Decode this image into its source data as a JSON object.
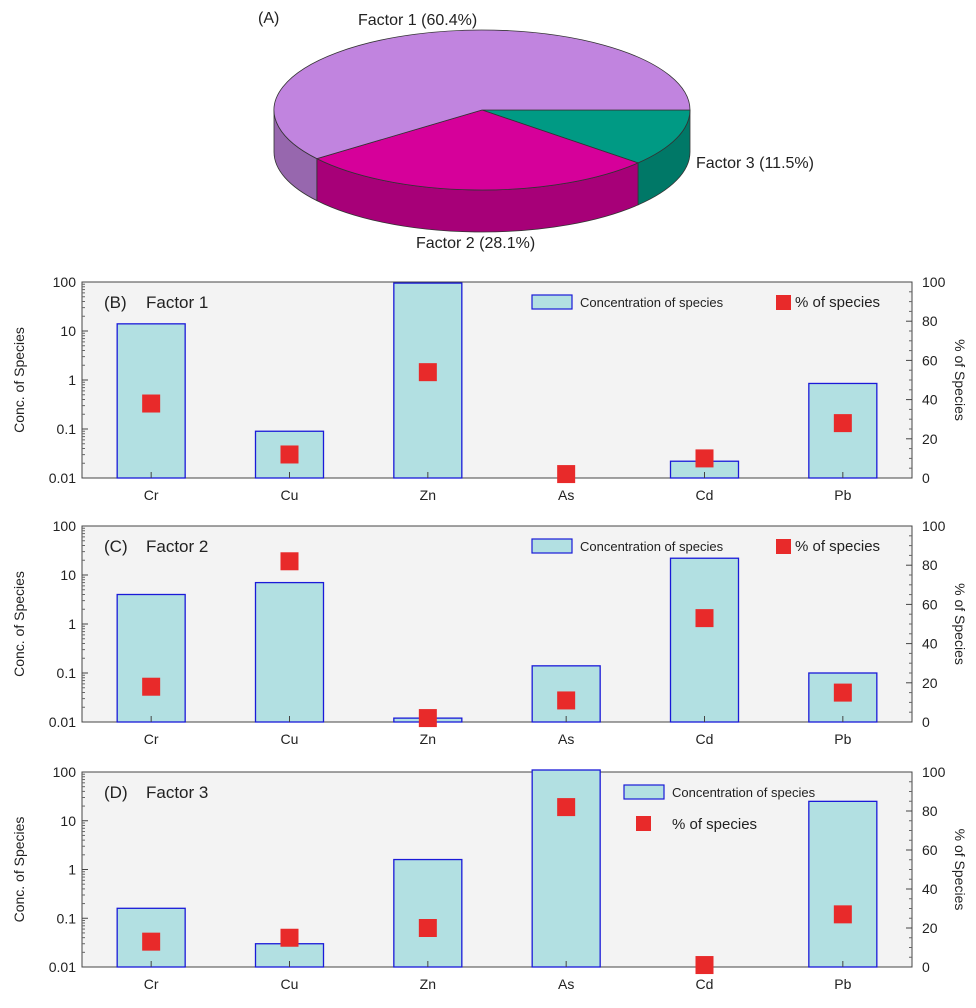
{
  "chart_data": [
    {
      "panel": "(A)",
      "type": "pie",
      "slices": [
        {
          "name": "Factor 1",
          "label": "Factor 1 (60.4%)",
          "value": 60.4
        },
        {
          "name": "Factor 2",
          "label": "Factor 2 (28.1%)",
          "value": 28.1
        },
        {
          "name": "Factor 3",
          "label": "Factor 3 (11.5%)",
          "value": 11.5
        }
      ]
    },
    {
      "panel": "(B)",
      "type": "bar",
      "title": "Factor 1",
      "categories": [
        "Cr",
        "Cu",
        "Zn",
        "As",
        "Cd",
        "Pb"
      ],
      "series": [
        {
          "name": "Concentration of species",
          "axis": "left",
          "values": [
            14,
            0.09,
            95,
            0,
            0.022,
            0.85
          ]
        },
        {
          "name": "% of species",
          "axis": "right",
          "values": [
            38,
            12,
            54,
            2,
            10,
            28
          ]
        }
      ],
      "ylabel": "Conc. of Species",
      "y2label": "% of Species",
      "yscale": "log",
      "ylim": [
        0.01,
        100
      ],
      "yticks": [
        "0.01",
        "0.1",
        "1",
        "10",
        "100"
      ],
      "y2lim": [
        0,
        100
      ],
      "y2ticks": [
        "0",
        "20",
        "40",
        "60",
        "80",
        "100"
      ],
      "legend": {
        "bar_label": "Concentration of species",
        "marker_label": "% of species",
        "placement": "top-right"
      }
    },
    {
      "panel": "(C)",
      "type": "bar",
      "title": "Factor 2",
      "categories": [
        "Cr",
        "Cu",
        "Zn",
        "As",
        "Cd",
        "Pb"
      ],
      "series": [
        {
          "name": "Concentration of species",
          "axis": "left",
          "values": [
            4,
            7,
            0.012,
            0.14,
            22,
            0.1
          ]
        },
        {
          "name": "% of species",
          "axis": "right",
          "values": [
            18,
            82,
            2,
            11,
            53,
            15
          ]
        }
      ],
      "ylabel": "Conc. of Species",
      "y2label": "% of Species",
      "yscale": "log",
      "ylim": [
        0.01,
        100
      ],
      "yticks": [
        "0.01",
        "0.1",
        "1",
        "10",
        "100"
      ],
      "y2lim": [
        0,
        100
      ],
      "y2ticks": [
        "0",
        "20",
        "40",
        "60",
        "80",
        "100"
      ],
      "legend": {
        "bar_label": "Concentration of species",
        "marker_label": "% of species",
        "placement": "top-right"
      }
    },
    {
      "panel": "(D)",
      "type": "bar",
      "title": "Factor 3",
      "categories": [
        "Cr",
        "Cu",
        "Zn",
        "As",
        "Cd",
        "Pb"
      ],
      "series": [
        {
          "name": "Concentration of species",
          "axis": "left",
          "values": [
            0.16,
            0.03,
            1.6,
            110,
            0,
            25
          ]
        },
        {
          "name": "% of species",
          "axis": "right",
          "values": [
            13,
            15,
            20,
            82,
            1,
            27
          ]
        }
      ],
      "ylabel": "Conc. of Species",
      "y2label": "% of Species",
      "yscale": "log",
      "ylim": [
        0.01,
        100
      ],
      "yticks": [
        "0.01",
        "0.1",
        "1",
        "10",
        "100"
      ],
      "y2lim": [
        0,
        100
      ],
      "y2ticks": [
        "0",
        "20",
        "40",
        "60",
        "80",
        "100"
      ],
      "legend": {
        "bar_label": "Concentration of species",
        "marker_label": "% of species",
        "placement": "top-right-stacked"
      }
    }
  ],
  "colors": {
    "pie": [
      "#c184df",
      "#d6009a",
      "#009a84"
    ],
    "bar_fill": "#b2e0e2",
    "bar_edge": "#1a1ad8",
    "marker": "#e82a2a",
    "panel_bg": "#f3f3f3"
  }
}
